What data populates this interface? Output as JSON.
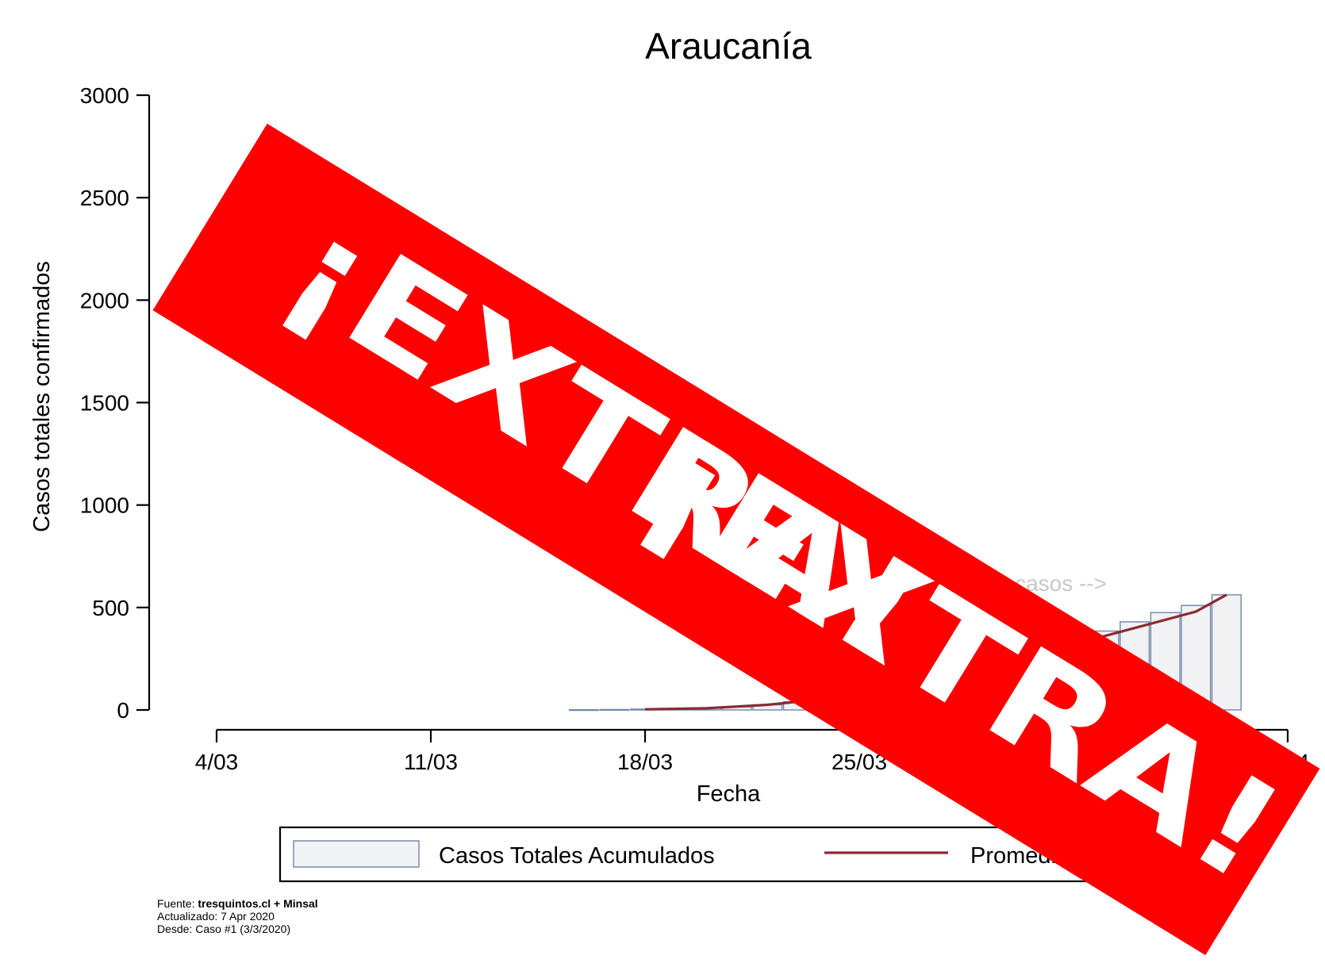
{
  "chart_data": {
    "type": "bar",
    "title": "Araucanía",
    "xlabel": "Fecha",
    "ylabel": "Casos totales confirmados",
    "ylim": [
      0,
      3000
    ],
    "yticks": [
      "0",
      "500",
      "1000",
      "1500",
      "2000",
      "2500",
      "3000"
    ],
    "xticks": [
      "4/03",
      "11/03",
      "18/03",
      "25/03",
      "8/04"
    ],
    "x_domain": [
      "2020-03-04",
      "2020-04-08"
    ],
    "series": [
      {
        "name": "Casos Totales Acumulados",
        "type": "bar",
        "color": "#f1f2f4",
        "edge_color": "#6f86a6",
        "points": [
          {
            "x": "2020-03-16",
            "y": 1
          },
          {
            "x": "2020-03-17",
            "y": 2
          },
          {
            "x": "2020-03-18",
            "y": 4
          },
          {
            "x": "2020-03-19",
            "y": 7
          },
          {
            "x": "2020-03-20",
            "y": 10
          },
          {
            "x": "2020-03-21",
            "y": 15
          },
          {
            "x": "2020-03-22",
            "y": 25
          },
          {
            "x": "2020-03-23",
            "y": 40
          },
          {
            "x": "2020-03-24",
            "y": 60
          },
          {
            "x": "2020-03-25",
            "y": 85
          },
          {
            "x": "2020-03-26",
            "y": 115
          },
          {
            "x": "2020-03-27",
            "y": 150
          },
          {
            "x": "2020-03-28",
            "y": 190
          },
          {
            "x": "2020-03-29",
            "y": 230
          },
          {
            "x": "2020-03-30",
            "y": 270
          },
          {
            "x": "2020-03-31",
            "y": 310
          },
          {
            "x": "2020-04-01",
            "y": 345
          },
          {
            "x": "2020-04-02",
            "y": 385
          },
          {
            "x": "2020-04-03",
            "y": 430
          },
          {
            "x": "2020-04-04",
            "y": 475
          },
          {
            "x": "2020-04-05",
            "y": 510
          },
          {
            "x": "2020-04-06",
            "y": 562
          }
        ]
      },
      {
        "name": "Promedio",
        "type": "line",
        "color": "#8b2a33",
        "points": [
          {
            "x": "2020-03-18",
            "y": 3
          },
          {
            "x": "2020-03-20",
            "y": 8
          },
          {
            "x": "2020-03-22",
            "y": 25
          },
          {
            "x": "2020-03-24",
            "y": 55
          },
          {
            "x": "2020-03-26",
            "y": 105
          },
          {
            "x": "2020-03-28",
            "y": 170
          },
          {
            "x": "2020-03-30",
            "y": 245
          },
          {
            "x": "2020-04-01",
            "y": 320
          },
          {
            "x": "2020-04-03",
            "y": 400
          },
          {
            "x": "2020-04-05",
            "y": 480
          },
          {
            "x": "2020-04-06",
            "y": 562
          }
        ]
      }
    ],
    "annotation": {
      "text": "562 casos -->",
      "color": "#c8c8c8"
    },
    "legend": [
      "Casos Totales Acumulados",
      "Promedio"
    ],
    "legend_placement": "bottom",
    "grid": false
  },
  "overlay": {
    "text_line1": "¡EXTRA!",
    "text_line2": "¡EXTRA!",
    "color": "#ff0000"
  },
  "footer": {
    "source_label": "Fuente: ",
    "source_value": "tresquintos.cl + Minsal",
    "updated": "Actualizado: 7 Apr 2020",
    "since": "Desde: Caso #1 (3/3/2020)"
  }
}
